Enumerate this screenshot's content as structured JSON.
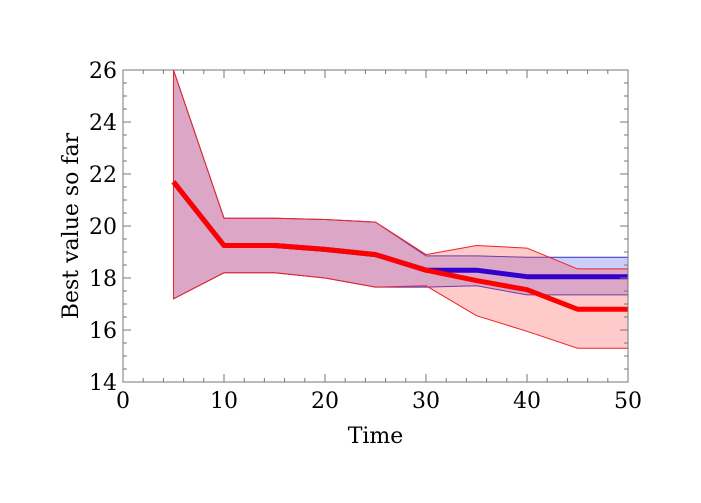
{
  "chart_data": {
    "type": "line",
    "title": "",
    "xlabel": "Time",
    "ylabel": "Best value so far",
    "xlim": [
      0,
      50
    ],
    "ylim": [
      14,
      26
    ],
    "xticks": [
      0,
      10,
      20,
      30,
      40,
      50
    ],
    "yticks": [
      14,
      16,
      18,
      20,
      22,
      24,
      26
    ],
    "grid": false,
    "legend": "none",
    "series": [
      {
        "color": "#3300cc",
        "band_fill": "rgba(90,90,235,0.30)",
        "band_stroke": "#3333cc",
        "x": [
          5,
          10,
          15,
          20,
          25,
          30,
          35,
          40,
          45,
          50
        ],
        "y": [
          21.7,
          19.25,
          19.25,
          19.1,
          18.9,
          18.3,
          18.3,
          18.05,
          18.05,
          18.05
        ],
        "lower": [
          17.2,
          18.2,
          18.2,
          18.0,
          17.65,
          17.65,
          17.7,
          17.35,
          17.35,
          17.35
        ],
        "upper": [
          26.0,
          20.3,
          20.3,
          20.25,
          20.15,
          18.85,
          18.85,
          18.8,
          18.8,
          18.8
        ]
      },
      {
        "color": "#ff0000",
        "band_fill": "rgba(255,80,80,0.30)",
        "band_stroke": "#ee2222",
        "x": [
          5,
          10,
          15,
          20,
          25,
          30,
          35,
          40,
          45,
          50
        ],
        "y": [
          21.7,
          19.25,
          19.25,
          19.1,
          18.9,
          18.3,
          17.9,
          17.55,
          16.8,
          16.8
        ],
        "lower": [
          17.2,
          18.2,
          18.2,
          18.0,
          17.65,
          17.7,
          16.55,
          15.95,
          15.3,
          15.3
        ],
        "upper": [
          26.0,
          20.3,
          20.3,
          20.25,
          20.15,
          18.9,
          19.25,
          19.15,
          18.35,
          18.35
        ]
      }
    ]
  }
}
